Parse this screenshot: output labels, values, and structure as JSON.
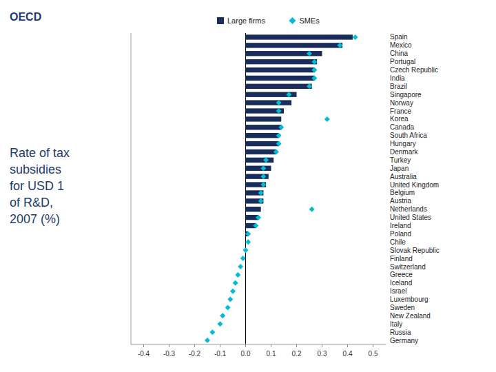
{
  "chart_data": {
    "type": "bar",
    "orientation": "horizontal",
    "title": "Rate of tax\n subsidies\n for USD 1\n of R&D,\n 2007 (%)",
    "annotations": [
      {
        "text": "OECD"
      }
    ],
    "categories": [
      "Spain",
      "Mexico",
      "China",
      "Portugal",
      "Czech Republic",
      "India",
      "Brazil",
      "Singapore",
      "Norway",
      "France",
      "Korea",
      "Canada",
      "South Africa",
      "Hungary",
      "Denmark",
      "Turkey",
      "Japan",
      "Australia",
      "United Kingdom",
      "Belgium",
      "Austria",
      "Netherlands",
      "United States",
      "Ireland",
      "Poland",
      "Chile",
      "Slovak Republic",
      "Finland",
      "Switzerland",
      "Greece",
      "Iceland",
      "Israel",
      "Luxembourg",
      "Sweden",
      "New Zealand",
      "Italy",
      "Russia",
      "Germany"
    ],
    "series": [
      {
        "name": "Large firms",
        "type": "bar",
        "color": "#1a2d5a",
        "values": [
          0.42,
          0.38,
          0.3,
          0.28,
          0.27,
          0.27,
          0.26,
          0.2,
          0.18,
          0.15,
          0.14,
          0.14,
          0.13,
          0.13,
          0.12,
          0.11,
          0.1,
          0.09,
          0.08,
          0.07,
          0.07,
          0.06,
          0.05,
          0.04,
          0.01,
          0.0,
          0.0,
          0.0,
          0.0,
          0.0,
          0.0,
          0.0,
          0.0,
          0.0,
          0.0,
          0.0,
          0.0,
          0.0
        ]
      },
      {
        "name": "SMEs",
        "type": "scatter",
        "marker": "diamond",
        "color": "#00bcd4",
        "values": [
          0.43,
          0.37,
          0.25,
          0.27,
          0.27,
          0.27,
          0.25,
          0.17,
          0.13,
          0.13,
          0.32,
          0.14,
          0.13,
          0.13,
          0.12,
          0.08,
          0.07,
          0.07,
          0.07,
          0.06,
          0.06,
          0.26,
          0.05,
          0.04,
          0.01,
          0.01,
          0.0,
          -0.01,
          -0.02,
          -0.03,
          -0.04,
          -0.05,
          -0.06,
          -0.07,
          -0.09,
          -0.1,
          -0.13,
          -0.15
        ]
      }
    ],
    "xlim": [
      -0.45,
      0.55
    ],
    "xticks": [
      -0.4,
      -0.3,
      -0.2,
      -0.1,
      {
        "value": 0.0,
        "label": "0.0"
      },
      0.1,
      0.2,
      0.3,
      0.4,
      0.5
    ],
    "grid": false,
    "legend": "top"
  }
}
